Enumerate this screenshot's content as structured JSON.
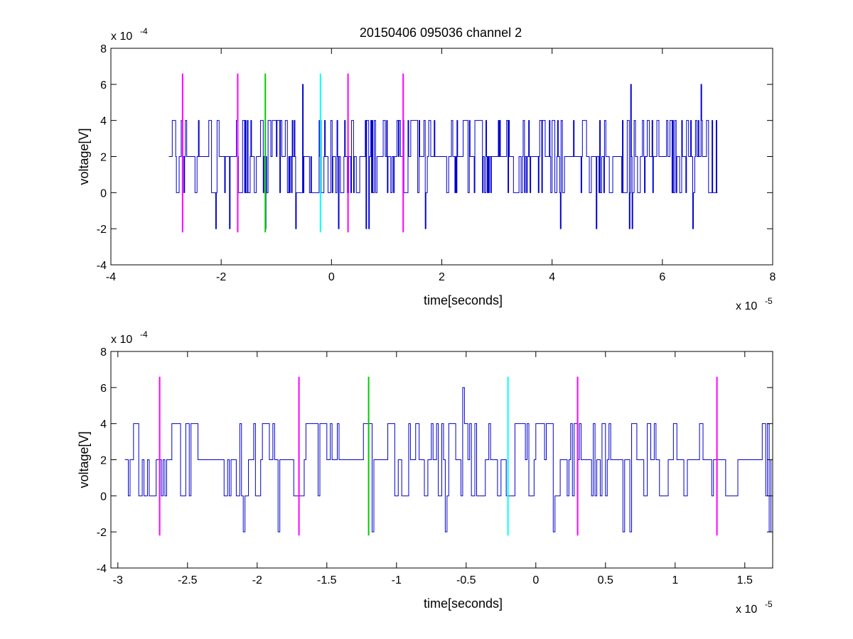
{
  "title": "20150406 095036 channel 2",
  "colors": {
    "signal": "#0000cc",
    "marker_magenta": "#ff00ff",
    "marker_green": "#00cc00",
    "marker_cyan": "#00ffff",
    "axes": "#000000",
    "background": "#ffffff"
  },
  "chart_data": [
    {
      "type": "line",
      "id": "full",
      "title": "20150406 095036 channel 2",
      "xlabel": "time[seconds]",
      "ylabel": "voltage[V]",
      "x_exponent_label": "x 10",
      "x_exponent": "-5",
      "y_exponent_label": "x 10",
      "y_exponent": "-4",
      "xlim": [
        -4,
        8
      ],
      "ylim": [
        -4,
        8
      ],
      "x_unit_scale": "1e-5",
      "y_unit_scale": "1e-4",
      "xticks": [
        "-4",
        "-2",
        "0",
        "2",
        "4",
        "6",
        "8"
      ],
      "yticks": [
        "-4",
        "-2",
        "0",
        "2",
        "4",
        "6",
        "8"
      ],
      "grid": false,
      "series": [
        {
          "style": "step",
          "x_start": -2.95,
          "x_end": 7.0,
          "spikes": [
            {
              "x": -2.1,
              "y": -2
            },
            {
              "x": -1.85,
              "y": -2
            },
            {
              "x": -1.2,
              "y": -2
            },
            {
              "x": -0.65,
              "y": -2
            },
            {
              "x": 0.12,
              "y": -2
            },
            {
              "x": 0.62,
              "y": -2
            },
            {
              "x": 0.68,
              "y": -2
            },
            {
              "x": 1.7,
              "y": -2
            },
            {
              "x": 4.15,
              "y": -2
            },
            {
              "x": 4.8,
              "y": -2
            },
            {
              "x": 5.4,
              "y": -2
            },
            {
              "x": 5.45,
              "y": -2
            },
            {
              "x": 6.55,
              "y": -2
            },
            {
              "x": -0.53,
              "y": 6
            },
            {
              "x": 5.43,
              "y": 6
            },
            {
              "x": 6.7,
              "y": 6
            }
          ]
        }
      ],
      "markers": [
        {
          "x": -2.7,
          "y_min": -2.2,
          "y_max": 6.6,
          "color": "magenta"
        },
        {
          "x": -1.7,
          "y_min": -2.2,
          "y_max": 6.6,
          "color": "magenta"
        },
        {
          "x": -1.2,
          "y_min": -2.2,
          "y_max": 6.6,
          "color": "green"
        },
        {
          "x": -0.2,
          "y_min": -2.2,
          "y_max": 6.6,
          "color": "cyan"
        },
        {
          "x": 0.3,
          "y_min": -2.2,
          "y_max": 6.6,
          "color": "magenta"
        },
        {
          "x": 1.3,
          "y_min": -2.2,
          "y_max": 6.6,
          "color": "magenta"
        }
      ]
    },
    {
      "type": "line",
      "id": "zoom",
      "title": "",
      "xlabel": "time[seconds]",
      "ylabel": "voltage[V]",
      "x_exponent_label": "x 10",
      "x_exponent": "-5",
      "y_exponent_label": "x 10",
      "y_exponent": "-4",
      "xlim": [
        -3.05,
        1.7
      ],
      "ylim": [
        -4,
        8
      ],
      "x_unit_scale": "1e-5",
      "y_unit_scale": "1e-4",
      "xticks": [
        "-3",
        "-2.5",
        "-2",
        "-1.5",
        "-1",
        "-0.5",
        "0",
        "0.5",
        "1",
        "1.5"
      ],
      "xtick_values": [
        -3,
        -2.5,
        -2,
        -1.5,
        -1,
        -0.5,
        0,
        0.5,
        1,
        1.5
      ],
      "yticks": [
        "-4",
        "-2",
        "0",
        "2",
        "4",
        "6",
        "8"
      ],
      "grid": false,
      "series": [
        {
          "style": "step",
          "x_start": -2.95,
          "x_end": 1.7,
          "spikes": [
            {
              "x": -2.1,
              "y": -2
            },
            {
              "x": -1.85,
              "y": -2
            },
            {
              "x": -1.18,
              "y": -2
            },
            {
              "x": -0.65,
              "y": -2
            },
            {
              "x": 0.12,
              "y": -2
            },
            {
              "x": 0.62,
              "y": -2
            },
            {
              "x": 0.67,
              "y": -2
            },
            {
              "x": 1.67,
              "y": -2
            },
            {
              "x": -0.53,
              "y": 6
            }
          ]
        }
      ],
      "markers": [
        {
          "x": -2.7,
          "y_min": -2.2,
          "y_max": 6.6,
          "color": "magenta"
        },
        {
          "x": -1.7,
          "y_min": -2.2,
          "y_max": 6.6,
          "color": "magenta"
        },
        {
          "x": -1.2,
          "y_min": -2.2,
          "y_max": 6.6,
          "color": "green"
        },
        {
          "x": -0.2,
          "y_min": -2.2,
          "y_max": 6.6,
          "color": "cyan"
        },
        {
          "x": 0.3,
          "y_min": -2.2,
          "y_max": 6.6,
          "color": "magenta"
        },
        {
          "x": 1.3,
          "y_min": -2.2,
          "y_max": 6.6,
          "color": "magenta"
        }
      ]
    }
  ]
}
